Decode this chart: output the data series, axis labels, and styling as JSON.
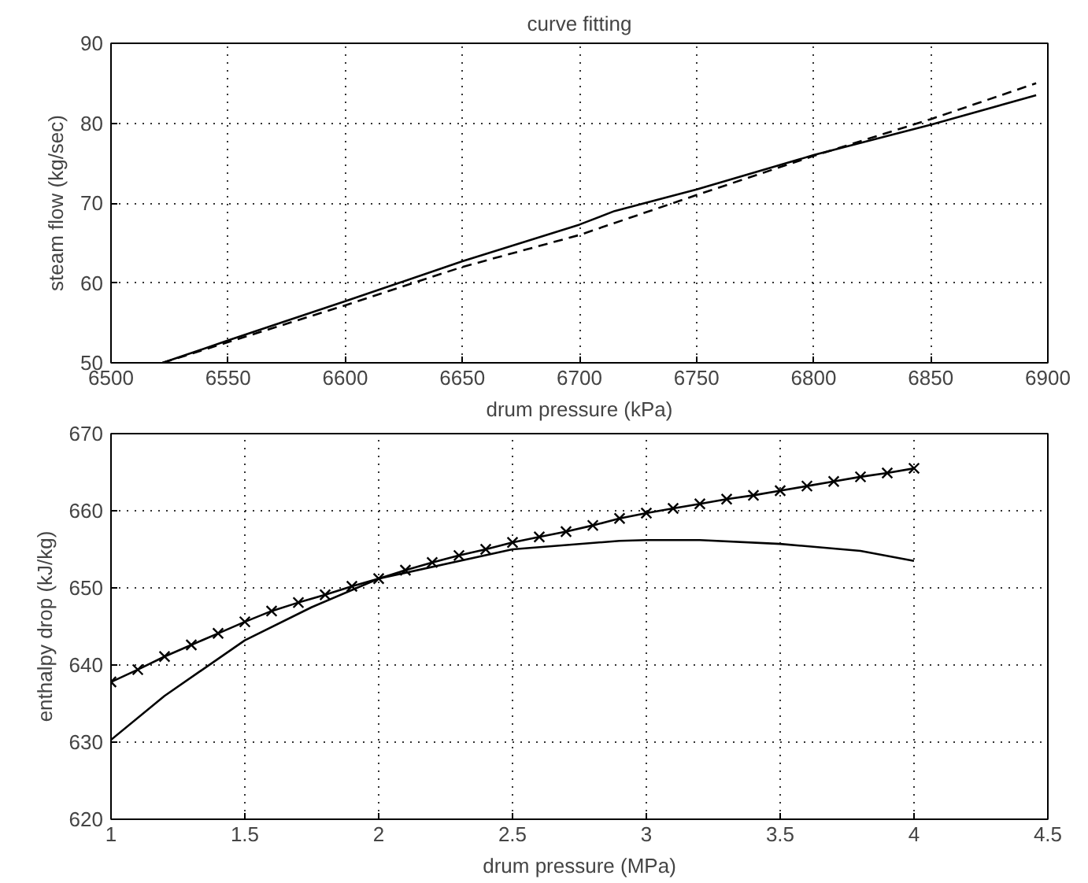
{
  "chart_data": [
    {
      "type": "line",
      "title": "curve fitting",
      "xlabel": "drum pressure (kPa)",
      "ylabel": "steam flow (kg/sec)",
      "xlim": [
        6500,
        6900
      ],
      "ylim": [
        50,
        90
      ],
      "xticks": [
        6500,
        6550,
        6600,
        6650,
        6700,
        6750,
        6800,
        6850,
        6900
      ],
      "yticks": [
        50,
        60,
        70,
        80,
        90
      ],
      "grid": true,
      "series": [
        {
          "color": "#000000",
          "line_style": "solid",
          "x": [
            6522,
            6550,
            6600,
            6650,
            6700,
            6715,
            6750,
            6800,
            6850,
            6895
          ],
          "values": [
            50,
            52.8,
            57.7,
            62.7,
            67.3,
            69,
            71.7,
            76,
            79.8,
            83.5
          ]
        },
        {
          "color": "#000000",
          "line_style": "dashed",
          "x": [
            6522,
            6600,
            6650,
            6700,
            6750,
            6800,
            6850,
            6895
          ],
          "values": [
            50,
            57.2,
            62,
            66,
            71,
            75.9,
            80.5,
            85
          ]
        }
      ]
    },
    {
      "type": "line",
      "xlabel": "drum pressure (MPa)",
      "ylabel": "enthalpy drop (kJ/kg)",
      "xlim": [
        1,
        4.5
      ],
      "ylim": [
        620,
        670
      ],
      "xticks": [
        1,
        1.5,
        2,
        2.5,
        3,
        3.5,
        4,
        4.5
      ],
      "yticks": [
        620,
        630,
        640,
        650,
        660,
        670
      ],
      "grid": true,
      "series": [
        {
          "color": "#000000",
          "marker": "cross",
          "line_style": "solid",
          "x": [
            1.0,
            1.1,
            1.2,
            1.3,
            1.4,
            1.5,
            1.6,
            1.7,
            1.8,
            1.9,
            2.0,
            2.1,
            2.2,
            2.3,
            2.4,
            2.5,
            2.6,
            2.7,
            2.8,
            2.9,
            3.0,
            3.1,
            3.2,
            3.3,
            3.4,
            3.5,
            3.6,
            3.7,
            3.8,
            3.9,
            4.0
          ],
          "values": [
            637.8,
            639.4,
            641.1,
            642.6,
            644.1,
            645.6,
            647,
            648.1,
            649.1,
            650.2,
            651.2,
            652.3,
            653.3,
            654.2,
            655,
            655.9,
            656.6,
            657.3,
            658.1,
            659,
            659.7,
            660.3,
            660.9,
            661.5,
            662,
            662.6,
            663.2,
            663.8,
            664.4,
            664.9,
            665.5
          ]
        },
        {
          "color": "#000000",
          "line_style": "solid",
          "x": [
            1.0,
            1.2,
            1.5,
            1.75,
            2.0,
            2.5,
            2.9,
            3.0,
            3.2,
            3.5,
            3.8,
            4.0
          ],
          "values": [
            630.3,
            636,
            643.2,
            647.5,
            651.2,
            655,
            656.1,
            656.2,
            656.2,
            655.7,
            654.8,
            653.5
          ]
        }
      ]
    }
  ]
}
